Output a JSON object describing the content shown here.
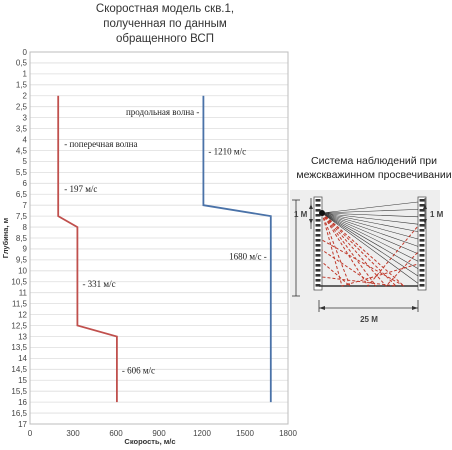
{
  "chart_title": [
    "Скоростная модель скв.1,",
    "полученная по данным",
    "обращенного ВСП"
  ],
  "chart_data": {
    "type": "line",
    "xlabel": "Скорость, м/с",
    "ylabel": "Глубина, м",
    "xlim": [
      0,
      1800
    ],
    "ylim": [
      0,
      17
    ],
    "y_inverted": true,
    "grid": "horizontal",
    "x_ticks": [
      "0",
      "300",
      "600",
      "900",
      "1200",
      "1500",
      "1800"
    ],
    "y_ticks": [
      "0",
      "0,5",
      "1",
      "1,5",
      "2",
      "2,5",
      "3",
      "3,5",
      "4",
      "4,5",
      "5",
      "5,5",
      "6",
      "6,5",
      "7",
      "7,5",
      "8",
      "8,5",
      "9",
      "9,5",
      "10",
      "10,5",
      "11",
      "11,5",
      "12",
      "12,5",
      "13",
      "13,5",
      "14",
      "14,5",
      "15",
      "15,5",
      "16",
      "16,5",
      "17"
    ],
    "series": [
      {
        "name": "продольная волна",
        "color": "#4a72a8",
        "points": [
          [
            1210,
            2
          ],
          [
            1210,
            7
          ],
          [
            1680,
            7.5
          ],
          [
            1680,
            16
          ]
        ]
      },
      {
        "name": "поперечная волна",
        "color": "#c0504d",
        "points": [
          [
            197,
            2
          ],
          [
            197,
            7.5
          ],
          [
            331,
            8
          ],
          [
            331,
            12.5
          ],
          [
            606,
            13
          ],
          [
            606,
            16
          ]
        ]
      }
    ],
    "annotations": [
      {
        "text": "продольная волна -",
        "x": 1210,
        "y": 2.75,
        "anchor": "end",
        "dx": -4
      },
      {
        "text": "- 1210 м/с",
        "x": 1210,
        "y": 4.55,
        "anchor": "start",
        "dx": 5
      },
      {
        "text": "- поперечная волна",
        "x": 197,
        "y": 4.2,
        "anchor": "start",
        "dx": 6
      },
      {
        "text": "- 197 м/с",
        "x": 197,
        "y": 6.25,
        "anchor": "start",
        "dx": 6
      },
      {
        "text": "1680 м/с -",
        "x": 1680,
        "y": 9.35,
        "anchor": "end",
        "dx": -4
      },
      {
        "text": "- 331 м/с",
        "x": 331,
        "y": 10.6,
        "anchor": "start",
        "dx": 5
      },
      {
        "text": "- 606 м/с",
        "x": 606,
        "y": 14.55,
        "anchor": "start",
        "dx": 5
      }
    ]
  },
  "scheme": {
    "title": [
      "Система наблюдений при",
      "межскважинном просвечивании"
    ],
    "left_dim": "1 М",
    "right_dim": "1 М",
    "bottom_dim": "25 М"
  }
}
